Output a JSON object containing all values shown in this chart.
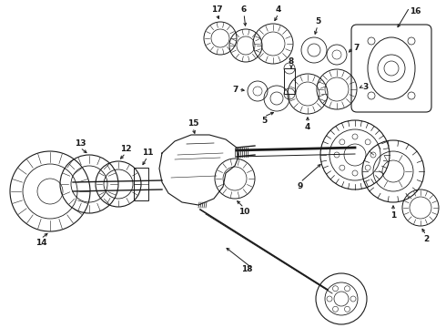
{
  "bg_color": "#ffffff",
  "lc": "#1a1a1a",
  "fs": 6.5,
  "fig_w": 4.9,
  "fig_h": 3.6,
  "dpi": 100
}
